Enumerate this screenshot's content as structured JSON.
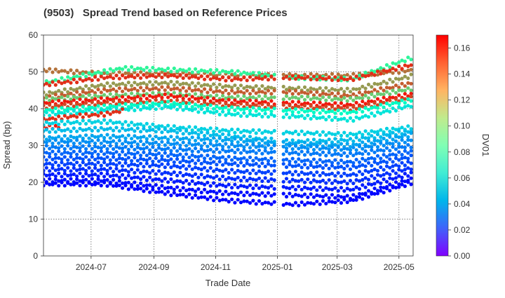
{
  "title": "(9503)   Spread Trend based on Reference Prices",
  "chart_data": {
    "type": "scatter",
    "title": "(9503)   Spread Trend based on Reference Prices",
    "xlabel": "Trade Date",
    "ylabel": "Spread (bp)",
    "xlim": [
      "2024-05-15",
      "2025-05-15"
    ],
    "ylim": [
      0,
      60
    ],
    "x_ticks": [
      "2024-07",
      "2024-09",
      "2024-11",
      "2025-01",
      "2025-03",
      "2025-05"
    ],
    "y_ticks": [
      0,
      10,
      20,
      30,
      40,
      50,
      60
    ],
    "grid": true,
    "colorbar": {
      "label": "DV01",
      "colormap": "rainbow",
      "range": [
        0.0,
        0.17
      ],
      "ticks": [
        "0.00",
        "0.02",
        "0.04",
        "0.06",
        "0.08",
        "0.10",
        "0.12",
        "0.14",
        "0.16"
      ]
    },
    "trend_series": [
      {
        "dv01": 0.145,
        "points": [
          [
            "2024-05-15",
            50.5
          ],
          [
            "2024-07-15",
            49.5
          ],
          [
            "2024-09-15",
            49.5
          ],
          [
            "2024-11-15",
            49.0
          ],
          [
            "2025-01-15",
            49.0
          ],
          [
            "2025-03-15",
            49.0
          ],
          [
            "2025-05-15",
            50.5
          ]
        ]
      },
      {
        "dv01": 0.1,
        "points": [
          [
            "2024-05-15",
            47.0
          ],
          [
            "2024-08-01",
            51.0
          ],
          [
            "2024-11-15",
            50.0
          ],
          [
            "2025-01-15",
            48.5
          ],
          [
            "2025-03-15",
            48.0
          ],
          [
            "2025-05-15",
            54.0
          ]
        ]
      },
      {
        "dv01": 0.16,
        "points": [
          [
            "2024-05-15",
            46.5
          ],
          [
            "2024-07-15",
            48.5
          ],
          [
            "2024-09-15",
            49.0
          ],
          [
            "2024-11-15",
            48.0
          ],
          [
            "2025-01-15",
            48.5
          ],
          [
            "2025-03-15",
            48.0
          ],
          [
            "2025-05-15",
            52.0
          ]
        ]
      },
      {
        "dv01": 0.135,
        "points": [
          [
            "2024-05-15",
            44.0
          ],
          [
            "2024-07-15",
            46.5
          ],
          [
            "2024-09-15",
            47.0
          ],
          [
            "2024-11-15",
            46.0
          ],
          [
            "2025-01-15",
            45.5
          ],
          [
            "2025-03-15",
            45.0
          ],
          [
            "2025-05-15",
            49.0
          ]
        ]
      },
      {
        "dv01": 0.15,
        "points": [
          [
            "2024-05-15",
            43.0
          ],
          [
            "2024-07-15",
            45.0
          ],
          [
            "2024-09-15",
            45.5
          ],
          [
            "2024-11-15",
            44.5
          ],
          [
            "2025-01-15",
            44.5
          ],
          [
            "2025-03-15",
            43.5
          ],
          [
            "2025-05-15",
            47.0
          ]
        ]
      },
      {
        "dv01": 0.12,
        "points": [
          [
            "2024-05-15",
            42.5
          ],
          [
            "2024-07-15",
            43.5
          ],
          [
            "2024-09-15",
            44.0
          ],
          [
            "2024-11-15",
            43.0
          ],
          [
            "2025-01-15",
            43.0
          ],
          [
            "2025-03-15",
            42.5
          ],
          [
            "2025-05-15",
            45.5
          ]
        ]
      },
      {
        "dv01": 0.165,
        "points": [
          [
            "2024-05-15",
            41.5
          ],
          [
            "2024-07-15",
            42.5
          ],
          [
            "2024-09-15",
            43.5
          ],
          [
            "2024-11-15",
            42.0
          ],
          [
            "2025-01-15",
            41.5
          ],
          [
            "2025-03-15",
            41.0
          ],
          [
            "2025-05-15",
            44.0
          ]
        ]
      },
      {
        "dv01": 0.155,
        "points": [
          [
            "2024-05-15",
            40.5
          ],
          [
            "2024-07-15",
            41.5
          ],
          [
            "2024-09-15",
            42.0
          ],
          [
            "2024-11-15",
            41.0
          ],
          [
            "2025-01-15",
            40.5
          ],
          [
            "2025-03-15",
            40.0
          ],
          [
            "2025-05-15",
            43.0
          ]
        ]
      },
      {
        "dv01": 0.075,
        "points": [
          [
            "2024-05-15",
            39.5
          ],
          [
            "2024-07-15",
            40.5
          ],
          [
            "2024-09-15",
            41.5
          ],
          [
            "2024-11-15",
            40.0
          ],
          [
            "2025-01-15",
            39.5
          ],
          [
            "2025-03-15",
            39.0
          ],
          [
            "2025-05-15",
            42.5
          ]
        ]
      },
      {
        "dv01": 0.06,
        "points": [
          [
            "2024-05-15",
            38.5
          ],
          [
            "2024-07-15",
            39.5
          ],
          [
            "2024-09-15",
            40.5
          ],
          [
            "2024-11-15",
            38.5
          ],
          [
            "2025-01-15",
            38.0
          ],
          [
            "2025-03-15",
            37.0
          ],
          [
            "2025-05-15",
            41.0
          ]
        ]
      },
      {
        "dv01": 0.16,
        "points": [
          [
            "2024-05-15",
            37.0
          ],
          [
            "2024-06-15",
            38.0
          ],
          [
            "2024-07-15",
            38.5
          ],
          [
            "2024-08-01",
            39.5
          ]
        ]
      },
      {
        "dv01": 0.165,
        "points": [
          [
            "2024-05-15",
            35.0
          ],
          [
            "2024-06-01",
            35.0
          ]
        ]
      },
      {
        "dv01": 0.052,
        "points": [
          [
            "2024-05-15",
            36.0
          ],
          [
            "2024-07-15",
            36.5
          ],
          [
            "2024-09-15",
            35.0
          ],
          [
            "2024-11-15",
            34.0
          ],
          [
            "2025-01-15",
            33.5
          ],
          [
            "2025-03-15",
            33.0
          ],
          [
            "2025-05-15",
            35.0
          ]
        ]
      },
      {
        "dv01": 0.045,
        "points": [
          [
            "2024-05-15",
            34.0
          ],
          [
            "2024-07-15",
            34.5
          ],
          [
            "2024-09-15",
            34.0
          ],
          [
            "2024-11-15",
            32.5
          ],
          [
            "2025-01-15",
            31.0
          ],
          [
            "2025-03-15",
            31.5
          ],
          [
            "2025-05-15",
            34.0
          ]
        ]
      },
      {
        "dv01": 0.038,
        "points": [
          [
            "2024-05-15",
            32.0
          ],
          [
            "2024-07-15",
            32.5
          ],
          [
            "2024-09-15",
            32.0
          ],
          [
            "2024-11-15",
            31.5
          ],
          [
            "2025-01-15",
            30.5
          ],
          [
            "2025-03-15",
            30.0
          ],
          [
            "2025-05-15",
            33.0
          ]
        ]
      },
      {
        "dv01": 0.032,
        "points": [
          [
            "2024-05-15",
            31.0
          ],
          [
            "2024-07-15",
            31.0
          ],
          [
            "2024-09-15",
            30.5
          ],
          [
            "2024-11-15",
            30.0
          ],
          [
            "2025-01-15",
            29.5
          ],
          [
            "2025-03-15",
            29.0
          ],
          [
            "2025-05-15",
            31.5
          ]
        ]
      },
      {
        "dv01": 0.027,
        "points": [
          [
            "2024-05-15",
            29.5
          ],
          [
            "2024-07-15",
            29.5
          ],
          [
            "2024-09-15",
            29.0
          ],
          [
            "2024-11-15",
            28.5
          ],
          [
            "2025-01-15",
            28.0
          ],
          [
            "2025-03-15",
            27.5
          ],
          [
            "2025-05-15",
            30.0
          ]
        ]
      },
      {
        "dv01": 0.022,
        "points": [
          [
            "2024-05-15",
            28.0
          ],
          [
            "2024-07-15",
            28.0
          ],
          [
            "2024-09-15",
            27.5
          ],
          [
            "2024-11-15",
            26.5
          ],
          [
            "2025-01-15",
            26.0
          ],
          [
            "2025-03-15",
            25.5
          ],
          [
            "2025-05-15",
            28.5
          ]
        ]
      },
      {
        "dv01": 0.018,
        "points": [
          [
            "2024-05-15",
            26.5
          ],
          [
            "2024-07-15",
            26.5
          ],
          [
            "2024-09-15",
            26.0
          ],
          [
            "2024-11-15",
            25.0
          ],
          [
            "2025-01-15",
            24.5
          ],
          [
            "2025-03-15",
            24.0
          ],
          [
            "2025-05-15",
            27.0
          ]
        ]
      },
      {
        "dv01": 0.014,
        "points": [
          [
            "2024-05-15",
            25.0
          ],
          [
            "2024-07-15",
            25.0
          ],
          [
            "2024-09-15",
            24.5
          ],
          [
            "2024-11-15",
            23.0
          ],
          [
            "2025-01-15",
            22.5
          ],
          [
            "2025-03-15",
            22.0
          ],
          [
            "2025-05-15",
            25.5
          ]
        ]
      },
      {
        "dv01": 0.01,
        "points": [
          [
            "2024-05-15",
            23.5
          ],
          [
            "2024-07-15",
            23.5
          ],
          [
            "2024-09-15",
            22.5
          ],
          [
            "2024-11-15",
            21.0
          ],
          [
            "2025-01-15",
            20.5
          ],
          [
            "2025-03-15",
            20.0
          ],
          [
            "2025-05-15",
            24.0
          ]
        ]
      },
      {
        "dv01": 0.006,
        "points": [
          [
            "2024-05-15",
            22.0
          ],
          [
            "2024-07-15",
            22.0
          ],
          [
            "2024-09-15",
            20.5
          ],
          [
            "2024-11-15",
            19.0
          ],
          [
            "2025-01-15",
            18.5
          ],
          [
            "2025-03-15",
            18.0
          ],
          [
            "2025-05-15",
            22.5
          ]
        ]
      },
      {
        "dv01": 0.003,
        "points": [
          [
            "2024-05-15",
            20.5
          ],
          [
            "2024-07-15",
            20.5
          ],
          [
            "2024-09-15",
            18.5
          ],
          [
            "2024-11-15",
            17.0
          ],
          [
            "2025-01-15",
            16.5
          ],
          [
            "2025-03-15",
            16.0
          ],
          [
            "2025-05-15",
            21.0
          ]
        ]
      },
      {
        "dv01": 0.001,
        "points": [
          [
            "2024-05-15",
            19.5
          ],
          [
            "2024-07-15",
            19.5
          ],
          [
            "2024-09-15",
            17.0
          ],
          [
            "2024-11-15",
            15.0
          ],
          [
            "2025-01-15",
            14.0
          ],
          [
            "2025-03-15",
            15.0
          ],
          [
            "2025-05-15",
            20.0
          ]
        ]
      }
    ]
  }
}
